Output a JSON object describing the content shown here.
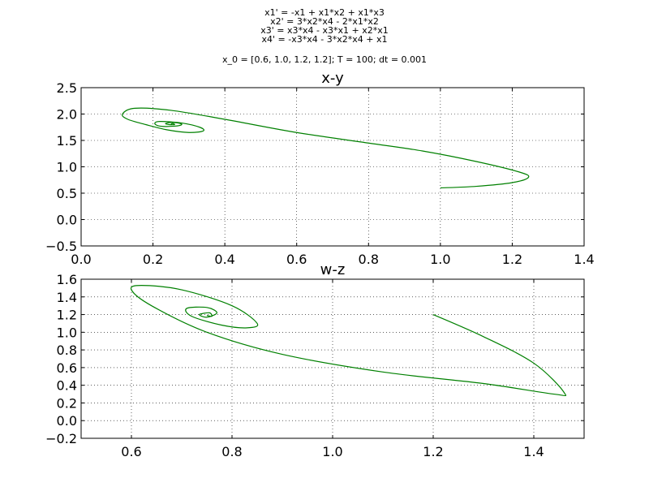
{
  "figure": {
    "equations": [
      "x1' = -x1 + x1*x2 + x1*x3",
      "x2' = 3*x2*x4 - 2*x1*x2",
      "x3' = x3*x4 - x3*x1 + x2*x1",
      "x4' = -x3*x4 - 3*x2*x4 + x1"
    ],
    "params": "x_0 = [0.6, 1.0, 1.2, 1.2]; T = 100; dt = 0.001"
  },
  "colors": {
    "trajectory": "#008000",
    "grid": "#000000",
    "axes": "#000000"
  },
  "chart_data": [
    {
      "type": "line",
      "title": "x-y",
      "xlabel": "",
      "ylabel": "",
      "xlim": [
        0.0,
        1.4
      ],
      "ylim": [
        -0.5,
        2.5
      ],
      "xticks": [
        0.0,
        0.2,
        0.4,
        0.6,
        0.8,
        1.0,
        1.2,
        1.4
      ],
      "xtick_labels": [
        "0.0",
        "0.2",
        "0.4",
        "0.6",
        "0.8",
        "1.0",
        "1.2",
        "1.4"
      ],
      "yticks": [
        -0.5,
        0.0,
        0.5,
        1.0,
        1.5,
        2.0,
        2.5
      ],
      "ytick_labels": [
        "−0.5",
        "0.0",
        "0.5",
        "1.0",
        "1.5",
        "2.0",
        "2.5"
      ],
      "grid": true,
      "series": [
        {
          "name": "trajectory",
          "x": [
            1.0,
            1.1,
            1.2,
            1.245,
            1.22,
            1.1,
            0.95,
            0.8,
            0.6,
            0.4,
            0.25,
            0.15,
            0.115,
            0.13,
            0.18,
            0.24,
            0.3,
            0.34,
            0.33,
            0.28,
            0.22,
            0.205,
            0.22,
            0.26,
            0.28,
            0.27,
            0.25,
            0.235,
            0.245,
            0.26,
            0.255,
            0.25
          ],
          "y": [
            0.6,
            0.63,
            0.7,
            0.8,
            0.9,
            1.1,
            1.3,
            1.45,
            1.65,
            1.9,
            2.07,
            2.11,
            2.0,
            1.9,
            1.8,
            1.7,
            1.65,
            1.68,
            1.75,
            1.83,
            1.86,
            1.82,
            1.77,
            1.77,
            1.8,
            1.83,
            1.84,
            1.82,
            1.8,
            1.8,
            1.82,
            1.81
          ]
        }
      ]
    },
    {
      "type": "line",
      "title": "w-z",
      "xlabel": "",
      "ylabel": "",
      "xlim": [
        0.5,
        1.5
      ],
      "ylim": [
        -0.2,
        1.6
      ],
      "xticks": [
        0.6,
        0.8,
        1.0,
        1.2,
        1.4
      ],
      "xtick_labels": [
        "0.6",
        "0.8",
        "1.0",
        "1.2",
        "1.4"
      ],
      "yticks": [
        -0.2,
        0.0,
        0.2,
        0.4,
        0.6,
        0.8,
        1.0,
        1.2,
        1.4,
        1.6
      ],
      "ytick_labels": [
        "−0.2",
        "0.0",
        "0.2",
        "0.4",
        "0.6",
        "0.8",
        "1.0",
        "1.2",
        "1.4",
        "1.6"
      ],
      "grid": true,
      "series": [
        {
          "name": "trajectory",
          "x": [
            1.2,
            1.3,
            1.4,
            1.46,
            1.44,
            1.3,
            1.1,
            0.9,
            0.75,
            0.64,
            0.6,
            0.62,
            0.7,
            0.8,
            0.85,
            0.83,
            0.78,
            0.72,
            0.71,
            0.75,
            0.77,
            0.75,
            0.735,
            0.755,
            0.76,
            0.75
          ],
          "y": [
            1.2,
            0.95,
            0.65,
            0.32,
            0.3,
            0.42,
            0.55,
            0.75,
            1.0,
            1.3,
            1.48,
            1.53,
            1.48,
            1.3,
            1.1,
            1.05,
            1.08,
            1.18,
            1.27,
            1.28,
            1.22,
            1.17,
            1.2,
            1.22,
            1.18,
            1.19
          ]
        }
      ]
    }
  ]
}
